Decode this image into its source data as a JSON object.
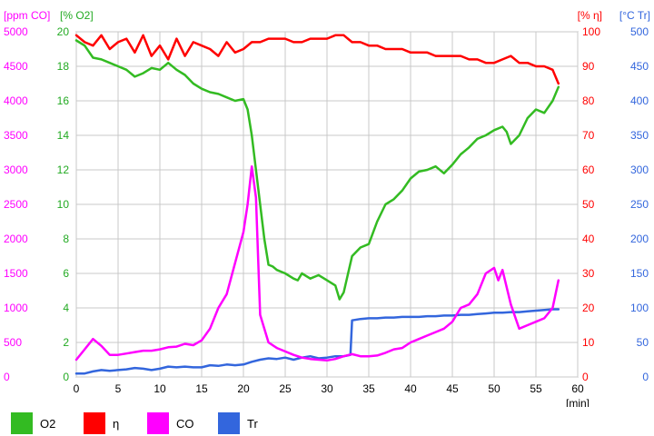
{
  "chart_data": {
    "type": "line",
    "xlabel": "[min]",
    "xlim": [
      0,
      60
    ],
    "xticks": [
      "0",
      "5",
      "10",
      "15",
      "20",
      "25",
      "30",
      "35",
      "40",
      "45",
      "50",
      "55",
      "60"
    ],
    "grid": true,
    "legend_position": "bottom",
    "axes": [
      {
        "id": "co",
        "label": "[ppm CO]",
        "side": "left",
        "order": 0,
        "color": "#ff00ff",
        "lim": [
          0,
          5000
        ],
        "ticks": [
          "0",
          "500",
          "1000",
          "1500",
          "2000",
          "2500",
          "3000",
          "3500",
          "4000",
          "4500",
          "5000"
        ]
      },
      {
        "id": "o2",
        "label": "[% O2]",
        "side": "left",
        "order": 1,
        "color": "#22aa22",
        "lim": [
          0,
          20
        ],
        "ticks": [
          "0",
          "2",
          "4",
          "6",
          "8",
          "10",
          "12",
          "14",
          "16",
          "18",
          "20"
        ]
      },
      {
        "id": "eta",
        "label": "[% η]",
        "side": "right",
        "order": 0,
        "color": "#ff0000",
        "lim": [
          0,
          100
        ],
        "ticks": [
          "0",
          "10",
          "20",
          "30",
          "40",
          "50",
          "60",
          "70",
          "80",
          "90",
          "100"
        ]
      },
      {
        "id": "tr",
        "label": "[°C Tr]",
        "side": "right",
        "order": 1,
        "color": "#3366dd",
        "lim": [
          0,
          500
        ],
        "ticks": [
          "0",
          "50",
          "100",
          "150",
          "200",
          "250",
          "300",
          "350",
          "400",
          "450",
          "500"
        ]
      }
    ],
    "series": [
      {
        "name": "O2",
        "axis": "o2",
        "color": "#33bb22",
        "x": [
          0,
          1,
          2,
          3,
          4,
          5,
          6,
          7,
          8,
          9,
          10,
          11,
          12,
          13,
          14,
          15,
          16,
          17,
          18,
          19,
          20,
          20.5,
          21,
          21.5,
          22,
          22.5,
          23,
          23.5,
          24,
          25,
          26,
          26.5,
          27,
          28,
          29,
          30,
          31,
          31.5,
          32,
          33,
          34,
          35,
          36,
          37,
          38,
          39,
          40,
          41,
          42,
          43,
          44,
          45,
          46,
          47,
          48,
          49,
          50,
          51,
          51.5,
          52,
          53,
          54,
          55,
          56,
          57,
          57.7
        ],
        "y": [
          19.5,
          19.2,
          18.5,
          18.4,
          18.2,
          18.0,
          17.8,
          17.4,
          17.6,
          17.9,
          17.8,
          18.2,
          17.8,
          17.5,
          17.0,
          16.7,
          16.5,
          16.4,
          16.2,
          16.0,
          16.1,
          15.5,
          14.0,
          12.0,
          10.0,
          8.0,
          6.5,
          6.4,
          6.2,
          6.0,
          5.7,
          5.6,
          6.0,
          5.7,
          5.9,
          5.6,
          5.3,
          4.5,
          4.9,
          7.0,
          7.5,
          7.7,
          9.0,
          10.0,
          10.3,
          10.8,
          11.5,
          11.9,
          12.0,
          12.2,
          11.8,
          12.3,
          12.9,
          13.3,
          13.8,
          14.0,
          14.3,
          14.5,
          14.2,
          13.5,
          14.0,
          15.0,
          15.5,
          15.3,
          16.0,
          16.8
        ]
      },
      {
        "name": "η",
        "axis": "eta",
        "color": "#ff0000",
        "x": [
          0,
          1,
          2,
          3,
          4,
          5,
          6,
          7,
          8,
          9,
          10,
          11,
          12,
          13,
          14,
          15,
          16,
          17,
          18,
          19,
          20,
          21,
          22,
          23,
          24,
          25,
          26,
          27,
          28,
          29,
          30,
          31,
          32,
          33,
          34,
          35,
          36,
          37,
          38,
          39,
          40,
          41,
          42,
          43,
          44,
          45,
          46,
          47,
          48,
          49,
          50,
          51,
          52,
          53,
          54,
          55,
          56,
          57,
          57.7
        ],
        "y": [
          99,
          97,
          96,
          99,
          95,
          97,
          98,
          94,
          99,
          93,
          96,
          92,
          98,
          93,
          97,
          96,
          95,
          93,
          97,
          94,
          95,
          97,
          97,
          98,
          98,
          98,
          97,
          97,
          98,
          98,
          98,
          99,
          99,
          97,
          97,
          96,
          96,
          95,
          95,
          95,
          94,
          94,
          94,
          93,
          93,
          93,
          93,
          92,
          92,
          91,
          91,
          92,
          93,
          91,
          91,
          90,
          90,
          89,
          85
        ]
      },
      {
        "name": "CO",
        "axis": "co",
        "color": "#ff00ff",
        "x": [
          0,
          1,
          2,
          3,
          4,
          5,
          6,
          7,
          8,
          9,
          10,
          11,
          12,
          13,
          14,
          15,
          16,
          17,
          18,
          19,
          20,
          20.5,
          21,
          21.5,
          22,
          23,
          24,
          25,
          26,
          27,
          28,
          29,
          30,
          31,
          32,
          33,
          34,
          35,
          36,
          37,
          38,
          39,
          40,
          41,
          42,
          43,
          44,
          45,
          46,
          47,
          48,
          49,
          50,
          50.5,
          51,
          52,
          53,
          54,
          55,
          56,
          57,
          57.7
        ],
        "y": [
          250,
          400,
          550,
          450,
          320,
          320,
          340,
          360,
          380,
          380,
          400,
          430,
          440,
          480,
          460,
          530,
          700,
          1000,
          1200,
          1650,
          2100,
          2500,
          3050,
          2600,
          900,
          500,
          420,
          370,
          320,
          280,
          260,
          250,
          240,
          260,
          300,
          330,
          300,
          300,
          310,
          350,
          400,
          420,
          500,
          550,
          600,
          650,
          700,
          800,
          1000,
          1050,
          1200,
          1500,
          1580,
          1400,
          1550,
          1050,
          700,
          750,
          800,
          850,
          1000,
          1400
        ]
      },
      {
        "name": "Tr",
        "axis": "tr",
        "color": "#3366dd",
        "x": [
          0,
          1,
          2,
          3,
          4,
          5,
          6,
          7,
          8,
          9,
          10,
          11,
          12,
          13,
          14,
          15,
          16,
          17,
          18,
          19,
          20,
          21,
          22,
          23,
          24,
          25,
          26,
          27,
          28,
          29,
          30,
          31,
          32,
          32.8,
          33,
          34,
          35,
          36,
          37,
          38,
          39,
          40,
          41,
          42,
          43,
          44,
          45,
          46,
          47,
          48,
          49,
          50,
          51,
          52,
          53,
          54,
          55,
          56,
          57,
          57.7
        ],
        "y": [
          5,
          5,
          8,
          10,
          9,
          10,
          11,
          13,
          12,
          10,
          12,
          15,
          14,
          15,
          14,
          14,
          17,
          16,
          18,
          17,
          18,
          22,
          25,
          27,
          26,
          28,
          25,
          28,
          30,
          27,
          28,
          30,
          30,
          32,
          82,
          84,
          85,
          85,
          86,
          86,
          87,
          87,
          87,
          88,
          88,
          89,
          89,
          90,
          90,
          91,
          92,
          93,
          93,
          94,
          94,
          95,
          96,
          97,
          98,
          98
        ]
      }
    ]
  },
  "legend": [
    {
      "label": "O2",
      "color": "#33bb22"
    },
    {
      "label": "η",
      "color": "#ff0000"
    },
    {
      "label": "CO",
      "color": "#ff00ff"
    },
    {
      "label": "Tr",
      "color": "#3366dd"
    }
  ]
}
